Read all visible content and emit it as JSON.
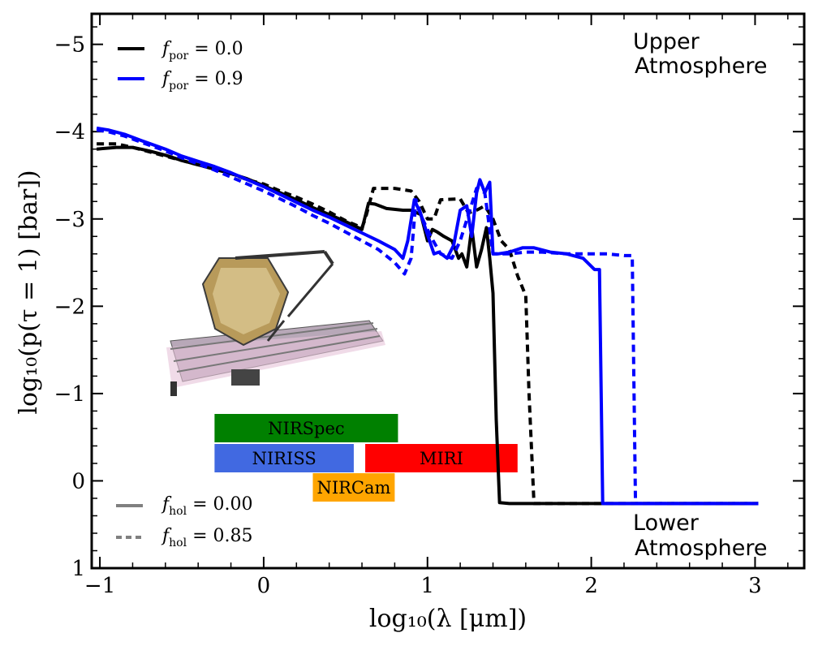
{
  "chart_data": {
    "type": "line",
    "xlabel": "log₁₀(λ [μm])",
    "ylabel": "log₁₀(p(τ = 1) [bar])",
    "xlim": [
      -1.05,
      3.3
    ],
    "ylim": [
      1.0,
      -5.35
    ],
    "y_inverted": true,
    "x_ticks": [
      -1,
      0,
      1,
      2,
      3
    ],
    "x_tick_labels": [
      "−1",
      "0",
      "1",
      "2",
      "3"
    ],
    "y_ticks": [
      -5,
      -4,
      -3,
      -2,
      -1,
      0,
      1
    ],
    "y_tick_labels": [
      "−5",
      "−4",
      "−3",
      "−2",
      "−1",
      "0",
      "1"
    ],
    "annotations": {
      "upper": [
        "Upper",
        "Atmosphere"
      ],
      "lower": [
        "Lower",
        "Atmosphere"
      ]
    },
    "legend_top": [
      {
        "label_main": "f",
        "label_sub": "por",
        "label_eq": " = 0.0",
        "color": "#000000",
        "style": "solid"
      },
      {
        "label_main": "f",
        "label_sub": "por",
        "label_eq": " = 0.9",
        "color": "#0000ff",
        "style": "solid"
      }
    ],
    "legend_bottom": [
      {
        "label_main": "f",
        "label_sub": "hol",
        "label_eq": " = 0.00",
        "color": "#808080",
        "style": "solid"
      },
      {
        "label_main": "f",
        "label_sub": "hol",
        "label_eq": " = 0.85",
        "color": "#808080",
        "style": "dashed"
      }
    ],
    "instrument_bands": [
      {
        "name": "NIRSpec",
        "x_start": -0.3,
        "x_end": 0.82,
        "row": 0,
        "color": "#008000"
      },
      {
        "name": "NIRISS",
        "x_start": -0.3,
        "x_end": 0.55,
        "row": 1,
        "color": "#4169e1"
      },
      {
        "name": "MIRI",
        "x_start": 0.62,
        "x_end": 1.55,
        "row": 1,
        "color": "#ff0000"
      },
      {
        "name": "NIRCam",
        "x_start": 0.3,
        "x_end": 0.8,
        "row": 2,
        "color": "#ffa500"
      }
    ],
    "series": [
      {
        "name": "f_por = 0.0, f_hol = 0.00",
        "color": "#000000",
        "style": "solid",
        "x": [
          -1.02,
          -0.9,
          -0.8,
          -0.7,
          -0.6,
          -0.5,
          -0.4,
          -0.3,
          -0.2,
          -0.1,
          0.0,
          0.1,
          0.2,
          0.3,
          0.4,
          0.5,
          0.6,
          0.64,
          0.68,
          0.75,
          0.85,
          0.9,
          0.96,
          1.0,
          1.03,
          1.06,
          1.1,
          1.15,
          1.19,
          1.21,
          1.24,
          1.27,
          1.3,
          1.33,
          1.36,
          1.38,
          1.4,
          1.42,
          1.44,
          1.5,
          2.0,
          2.5,
          3.02
        ],
        "y": [
          -3.8,
          -3.82,
          -3.82,
          -3.78,
          -3.73,
          -3.67,
          -3.62,
          -3.57,
          -3.52,
          -3.46,
          -3.38,
          -3.3,
          -3.22,
          -3.13,
          -3.05,
          -2.97,
          -2.88,
          -3.18,
          -3.17,
          -3.12,
          -3.1,
          -3.1,
          -3.05,
          -2.75,
          -2.88,
          -2.85,
          -2.8,
          -2.75,
          -2.55,
          -2.6,
          -2.45,
          -2.9,
          -2.45,
          -2.65,
          -2.9,
          -2.55,
          -2.15,
          -0.7,
          0.25,
          0.26,
          0.26,
          0.26,
          0.26
        ]
      },
      {
        "name": "f_por = 0.0, f_hol = 0.85",
        "color": "#000000",
        "style": "dashed",
        "x": [
          -1.02,
          -0.9,
          -0.8,
          -0.7,
          -0.6,
          -0.5,
          -0.4,
          -0.3,
          -0.2,
          -0.1,
          0.0,
          0.1,
          0.2,
          0.3,
          0.4,
          0.5,
          0.6,
          0.62,
          0.67,
          0.8,
          0.9,
          0.95,
          1.0,
          1.04,
          1.08,
          1.2,
          1.25,
          1.3,
          1.35,
          1.4,
          1.45,
          1.5,
          1.55,
          1.6,
          1.62,
          1.65,
          2.0,
          2.5,
          3.02
        ],
        "y": [
          -3.86,
          -3.86,
          -3.82,
          -3.77,
          -3.72,
          -3.67,
          -3.62,
          -3.57,
          -3.52,
          -3.45,
          -3.4,
          -3.32,
          -3.25,
          -3.17,
          -3.08,
          -2.98,
          -2.9,
          -3.0,
          -3.35,
          -3.35,
          -3.32,
          -3.2,
          -3.0,
          -3.0,
          -3.22,
          -3.23,
          -3.07,
          -3.1,
          -3.15,
          -3.0,
          -2.75,
          -2.65,
          -2.35,
          -2.12,
          -1.0,
          0.26,
          0.26,
          0.26,
          0.26
        ]
      },
      {
        "name": "f_por = 0.9, f_hol = 0.00",
        "color": "#0000ff",
        "style": "solid",
        "x": [
          -1.02,
          -0.95,
          -0.85,
          -0.75,
          -0.6,
          -0.5,
          -0.4,
          -0.3,
          -0.2,
          -0.1,
          0.0,
          0.1,
          0.2,
          0.3,
          0.4,
          0.5,
          0.6,
          0.7,
          0.8,
          0.85,
          0.88,
          0.92,
          0.96,
          1.0,
          1.04,
          1.07,
          1.12,
          1.16,
          1.2,
          1.24,
          1.27,
          1.3,
          1.32,
          1.35,
          1.38,
          1.4,
          1.43,
          1.5,
          1.58,
          1.65,
          1.75,
          1.85,
          1.95,
          2.02,
          2.05,
          2.07,
          2.1,
          2.5,
          3.02
        ],
        "y": [
          -4.04,
          -4.02,
          -3.97,
          -3.9,
          -3.8,
          -3.72,
          -3.66,
          -3.6,
          -3.53,
          -3.45,
          -3.37,
          -3.28,
          -3.19,
          -3.1,
          -3.02,
          -2.93,
          -2.84,
          -2.75,
          -2.65,
          -2.55,
          -2.75,
          -3.22,
          -3.05,
          -2.82,
          -2.6,
          -2.62,
          -2.55,
          -2.7,
          -3.1,
          -3.15,
          -2.8,
          -3.3,
          -3.45,
          -3.3,
          -3.42,
          -2.6,
          -2.6,
          -2.62,
          -2.67,
          -2.67,
          -2.62,
          -2.6,
          -2.55,
          -2.42,
          -2.42,
          0.26,
          0.26,
          0.26,
          0.26
        ]
      },
      {
        "name": "f_por = 0.9, f_hol = 0.85",
        "color": "#0000ff",
        "style": "dashed",
        "x": [
          -1.02,
          -0.95,
          -0.85,
          -0.75,
          -0.6,
          -0.5,
          -0.4,
          -0.3,
          -0.2,
          -0.1,
          0.0,
          0.1,
          0.2,
          0.3,
          0.4,
          0.5,
          0.6,
          0.7,
          0.8,
          0.86,
          0.9,
          0.93,
          0.97,
          1.02,
          1.08,
          1.15,
          1.2,
          1.25,
          1.3,
          1.35,
          1.4,
          1.5,
          1.6,
          1.7,
          1.85,
          2.0,
          2.1,
          2.2,
          2.25,
          2.27,
          2.3,
          2.6,
          3.02
        ],
        "y": [
          -4.02,
          -4.0,
          -3.95,
          -3.88,
          -3.78,
          -3.7,
          -3.63,
          -3.56,
          -3.48,
          -3.4,
          -3.32,
          -3.23,
          -3.14,
          -3.04,
          -2.95,
          -2.85,
          -2.75,
          -2.65,
          -2.5,
          -2.37,
          -2.55,
          -3.22,
          -3.0,
          -2.8,
          -2.6,
          -2.55,
          -2.75,
          -3.05,
          -3.35,
          -3.3,
          -2.6,
          -2.6,
          -2.62,
          -2.62,
          -2.6,
          -2.6,
          -2.6,
          -2.58,
          -2.58,
          0.26,
          0.26,
          0.26,
          0.26
        ]
      }
    ]
  }
}
